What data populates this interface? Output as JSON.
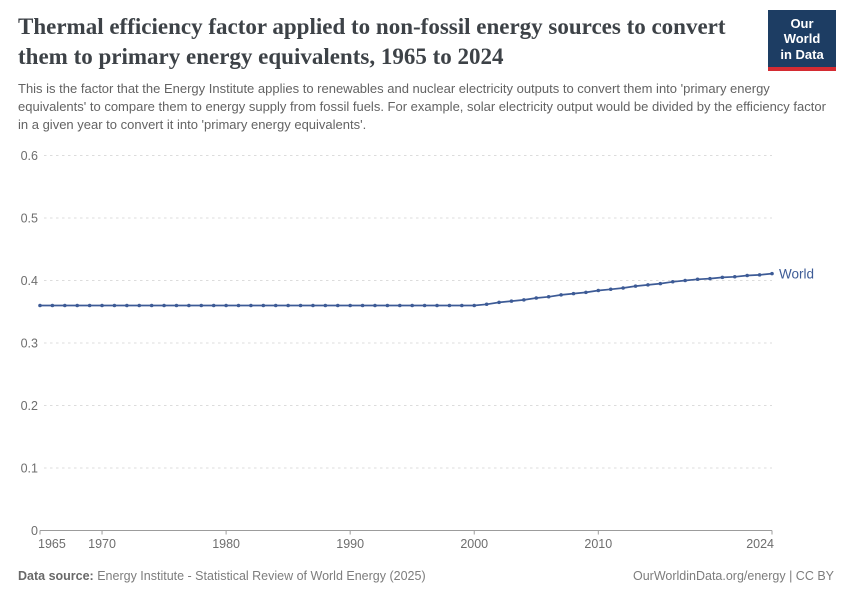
{
  "header": {
    "title": "Thermal efficiency factor applied to non-fossil energy sources to convert them to primary energy equivalents, 1965 to 2024",
    "subtitle": "This is the factor that the Energy Institute applies to renewables and nuclear electricity outputs to convert them into 'primary energy equivalents' to compare them to energy supply from fossil fuels. For example, solar electricity output would be divided by the efficiency factor in a given year to convert it into 'primary energy equivalents'.",
    "logo": {
      "line1": "Our World",
      "line2": "in Data",
      "bg_color": "#1d3d63",
      "accent_color": "#d42b32"
    }
  },
  "chart_data": {
    "type": "line",
    "title": "Thermal efficiency factor applied to non-fossil energy sources to convert them to primary energy equivalents, 1965 to 2024",
    "xlabel": "",
    "ylabel": "",
    "xlim": [
      1965,
      2024
    ],
    "ylim": [
      0,
      0.6
    ],
    "grid": "horizontal dashed",
    "legend_position": "end-of-line label",
    "x_ticks": [
      1965,
      1970,
      1980,
      1990,
      2000,
      2010,
      2024
    ],
    "y_ticks": [
      0,
      0.1,
      0.2,
      0.3,
      0.4,
      0.5,
      0.6
    ],
    "colors": {
      "series": "#3d5b96",
      "gridline": "#dcdcdc",
      "axis": "#9c9c9c",
      "tick_label": "#6e6e6e"
    },
    "series": [
      {
        "name": "World",
        "color": "#3d5b96",
        "x": [
          1965,
          1966,
          1967,
          1968,
          1969,
          1970,
          1971,
          1972,
          1973,
          1974,
          1975,
          1976,
          1977,
          1978,
          1979,
          1980,
          1981,
          1982,
          1983,
          1984,
          1985,
          1986,
          1987,
          1988,
          1989,
          1990,
          1991,
          1992,
          1993,
          1994,
          1995,
          1996,
          1997,
          1998,
          1999,
          2000,
          2001,
          2002,
          2003,
          2004,
          2005,
          2006,
          2007,
          2008,
          2009,
          2010,
          2011,
          2012,
          2013,
          2014,
          2015,
          2016,
          2017,
          2018,
          2019,
          2020,
          2021,
          2022,
          2023,
          2024
        ],
        "values": [
          0.36,
          0.36,
          0.36,
          0.36,
          0.36,
          0.36,
          0.36,
          0.36,
          0.36,
          0.36,
          0.36,
          0.36,
          0.36,
          0.36,
          0.36,
          0.36,
          0.36,
          0.36,
          0.36,
          0.36,
          0.36,
          0.36,
          0.36,
          0.36,
          0.36,
          0.36,
          0.36,
          0.36,
          0.36,
          0.36,
          0.36,
          0.36,
          0.36,
          0.36,
          0.36,
          0.36,
          0.362,
          0.365,
          0.367,
          0.369,
          0.372,
          0.374,
          0.377,
          0.379,
          0.381,
          0.384,
          0.386,
          0.388,
          0.391,
          0.393,
          0.395,
          0.398,
          0.4,
          0.402,
          0.403,
          0.405,
          0.406,
          0.408,
          0.409,
          0.411
        ]
      }
    ]
  },
  "footer": {
    "datasource_label": "Data source:",
    "datasource_text": "Energy Institute - Statistical Review of World Energy (2025)",
    "attribution": "OurWorldinData.org/energy | CC BY"
  }
}
